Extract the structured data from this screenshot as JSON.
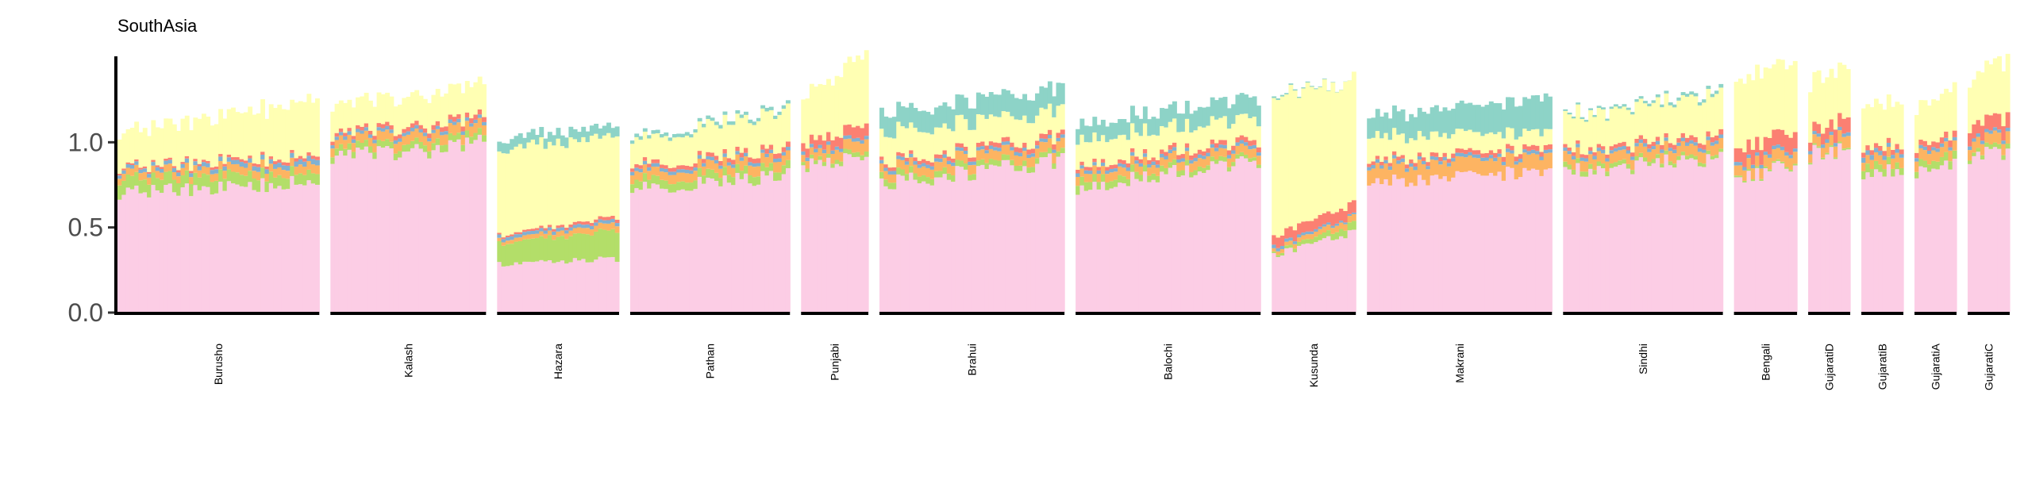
{
  "chart_data": {
    "type": "bar",
    "subtype": "stacked-admixture",
    "title": "SouthAsia",
    "xlabel": "",
    "ylabel": "",
    "ylim": [
      0,
      1.5
    ],
    "yticks": [
      0.0,
      0.5,
      1.0
    ],
    "ytick_labels": [
      "0.0",
      "0.5",
      "1.0"
    ],
    "grid": false,
    "legend": "none",
    "component_colors": [
      "#fccde5",
      "#b3de69",
      "#fdb462",
      "#80b1d3",
      "#fb8072",
      "#ffffb3",
      "#8dd3c7"
    ],
    "populations": [
      {
        "name": "Burusho",
        "n": 48,
        "c0": [
          0.7,
          0.76
        ],
        "c1": [
          0.08,
          0.06
        ],
        "c2": [
          0.04,
          0.05
        ],
        "c3": [
          0.02,
          0.03
        ],
        "c4": [
          0.01,
          0.02
        ],
        "c5": [
          0.2,
          0.33
        ],
        "c6": [
          0.0,
          0.0
        ]
      },
      {
        "name": "Kalash",
        "n": 37,
        "c0": [
          0.9,
          0.99
        ],
        "c1": [
          0.04,
          0.04
        ],
        "c2": [
          0.05,
          0.06
        ],
        "c3": [
          0.02,
          0.02
        ],
        "c4": [
          0.02,
          0.03
        ],
        "c5": [
          0.17,
          0.19
        ],
        "c6": [
          0.0,
          0.0
        ]
      },
      {
        "name": "Hazara",
        "n": 29,
        "c0": [
          0.28,
          0.31
        ],
        "c1": [
          0.12,
          0.17
        ],
        "c2": [
          0.02,
          0.04
        ],
        "c3": [
          0.02,
          0.02
        ],
        "c4": [
          0.01,
          0.02
        ],
        "c5": [
          0.5,
          0.48
        ],
        "c6": [
          0.06,
          0.06
        ]
      },
      {
        "name": "Pathan",
        "n": 38,
        "c0": [
          0.72,
          0.8
        ],
        "c1": [
          0.05,
          0.05
        ],
        "c2": [
          0.05,
          0.06
        ],
        "c3": [
          0.02,
          0.02
        ],
        "c4": [
          0.02,
          0.03
        ],
        "c5": [
          0.15,
          0.22
        ],
        "c6": [
          0.02,
          0.02
        ]
      },
      {
        "name": "Punjabi",
        "n": 16,
        "c0": [
          0.86,
          0.89
        ],
        "c1": [
          0.02,
          0.03
        ],
        "c2": [
          0.04,
          0.07
        ],
        "c3": [
          0.02,
          0.02
        ],
        "c4": [
          0.05,
          0.07
        ],
        "c5": [
          0.27,
          0.42
        ],
        "c6": [
          0.0,
          0.0
        ]
      },
      {
        "name": "Brahui",
        "n": 44,
        "c0": [
          0.75,
          0.89
        ],
        "c1": [
          0.04,
          0.03
        ],
        "c2": [
          0.05,
          0.06
        ],
        "c3": [
          0.02,
          0.02
        ],
        "c4": [
          0.02,
          0.03
        ],
        "c5": [
          0.17,
          0.15
        ],
        "c6": [
          0.12,
          0.13
        ]
      },
      {
        "name": "Balochi",
        "n": 44,
        "c0": [
          0.73,
          0.89
        ],
        "c1": [
          0.05,
          0.02
        ],
        "c2": [
          0.05,
          0.05
        ],
        "c3": [
          0.02,
          0.02
        ],
        "c4": [
          0.02,
          0.03
        ],
        "c5": [
          0.15,
          0.13
        ],
        "c6": [
          0.09,
          0.12
        ]
      },
      {
        "name": "Kusunda",
        "n": 20,
        "c0": [
          0.33,
          0.47
        ],
        "c1": [
          0.01,
          0.05
        ],
        "c2": [
          0.02,
          0.04
        ],
        "c3": [
          0.02,
          0.01
        ],
        "c4": [
          0.06,
          0.07
        ],
        "c5": [
          0.8,
          0.73
        ],
        "c6": [
          0.01,
          0.0
        ]
      },
      {
        "name": "Makrani",
        "n": 44,
        "c0": [
          0.75,
          0.83
        ],
        "c1": [
          0.0,
          0.0
        ],
        "c2": [
          0.09,
          0.09
        ],
        "c3": [
          0.02,
          0.02
        ],
        "c4": [
          0.02,
          0.03
        ],
        "c5": [
          0.14,
          0.09
        ],
        "c6": [
          0.12,
          0.2
        ]
      },
      {
        "name": "Sindhi",
        "n": 38,
        "c0": [
          0.82,
          0.9
        ],
        "c1": [
          0.03,
          0.02
        ],
        "c2": [
          0.06,
          0.06
        ],
        "c3": [
          0.02,
          0.02
        ],
        "c4": [
          0.02,
          0.03
        ],
        "c5": [
          0.2,
          0.24
        ],
        "c6": [
          0.01,
          0.02
        ]
      },
      {
        "name": "Bengali",
        "n": 15,
        "c0": [
          0.77,
          0.88
        ],
        "c1": [
          0.01,
          0.01
        ],
        "c2": [
          0.06,
          0.07
        ],
        "c3": [
          0.02,
          0.02
        ],
        "c4": [
          0.08,
          0.1
        ],
        "c5": [
          0.4,
          0.41
        ],
        "c6": [
          0.0,
          0.0
        ]
      },
      {
        "name": "GujaratiD",
        "n": 10,
        "c0": [
          0.92,
          0.97
        ],
        "c1": [
          0.01,
          0.01
        ],
        "c2": [
          0.05,
          0.07
        ],
        "c3": [
          0.02,
          0.02
        ],
        "c4": [
          0.05,
          0.09
        ],
        "c5": [
          0.3,
          0.3
        ],
        "c6": [
          0.0,
          0.0
        ]
      },
      {
        "name": "GujaratiB",
        "n": 10,
        "c0": [
          0.82,
          0.85
        ],
        "c1": [
          0.05,
          0.04
        ],
        "c2": [
          0.05,
          0.06
        ],
        "c3": [
          0.03,
          0.02
        ],
        "c4": [
          0.03,
          0.03
        ],
        "c5": [
          0.25,
          0.26
        ],
        "c6": [
          0.0,
          0.0
        ]
      },
      {
        "name": "GujaratiA",
        "n": 10,
        "c0": [
          0.82,
          0.85
        ],
        "c1": [
          0.04,
          0.05
        ],
        "c2": [
          0.06,
          0.06
        ],
        "c3": [
          0.02,
          0.02
        ],
        "c4": [
          0.03,
          0.04
        ],
        "c5": [
          0.22,
          0.28
        ],
        "c6": [
          0.0,
          0.0
        ]
      },
      {
        "name": "GujaratiC",
        "n": 10,
        "c0": [
          0.89,
          0.95
        ],
        "c1": [
          0.02,
          0.03
        ],
        "c2": [
          0.06,
          0.07
        ],
        "c3": [
          0.02,
          0.02
        ],
        "c4": [
          0.08,
          0.09
        ],
        "c5": [
          0.27,
          0.35
        ],
        "c6": [
          0.0,
          0.0
        ]
      }
    ]
  }
}
